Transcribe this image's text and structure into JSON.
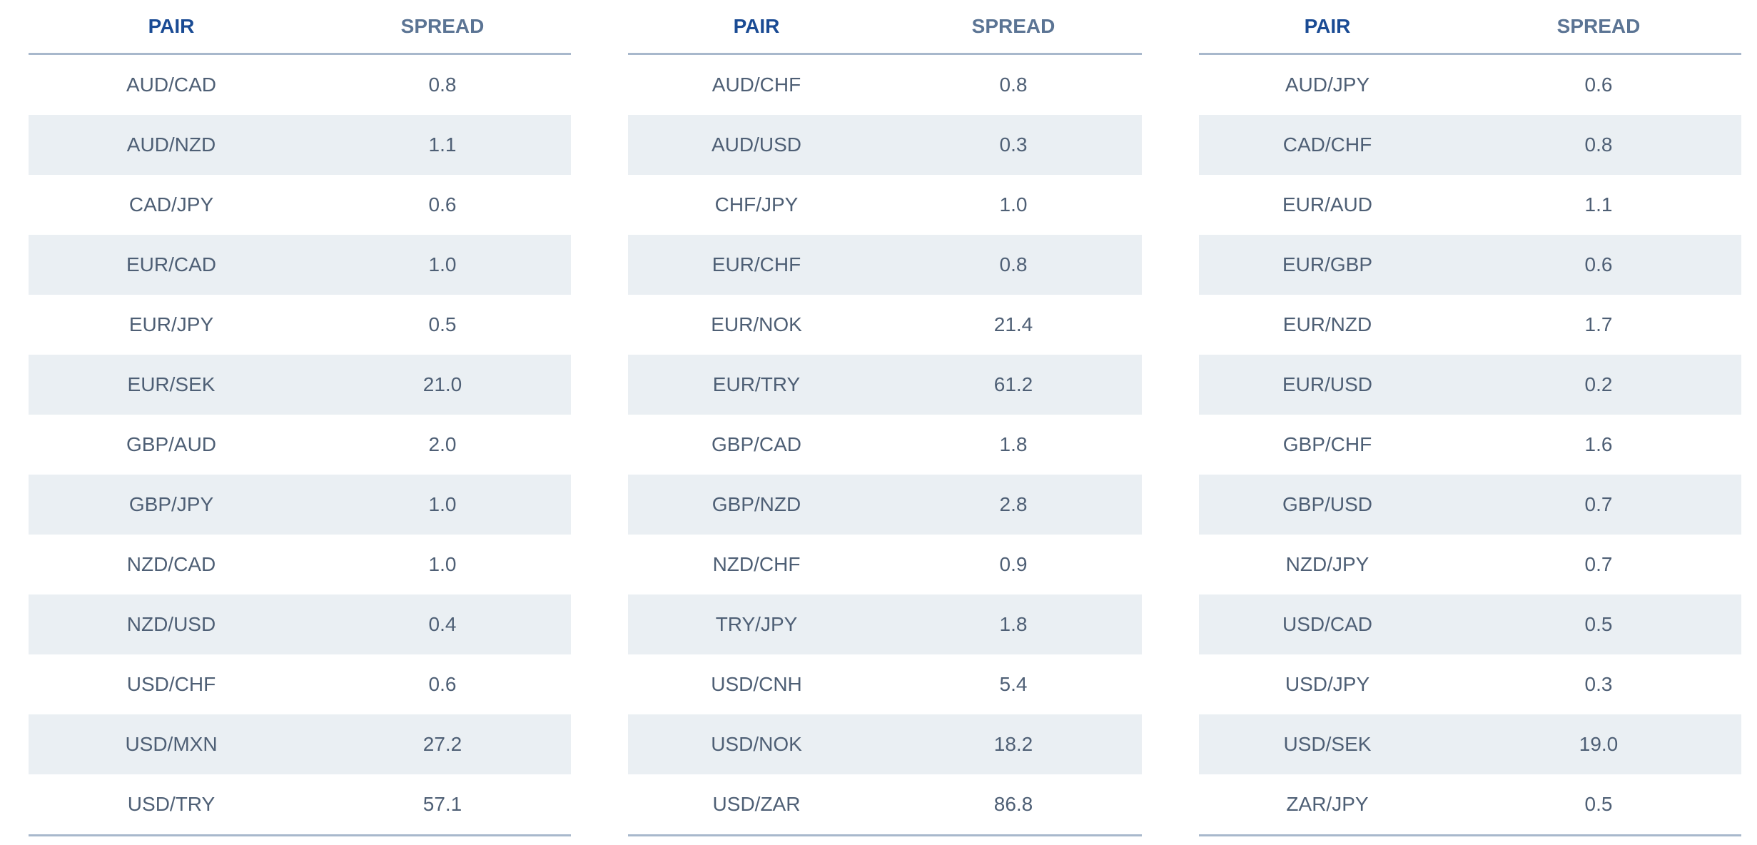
{
  "headers": {
    "pair": "PAIR",
    "spread": "SPREAD"
  },
  "tables": [
    {
      "rows": [
        {
          "pair": "AUD/CAD",
          "spread": "0.8"
        },
        {
          "pair": "AUD/NZD",
          "spread": "1.1"
        },
        {
          "pair": "CAD/JPY",
          "spread": "0.6"
        },
        {
          "pair": "EUR/CAD",
          "spread": "1.0"
        },
        {
          "pair": "EUR/JPY",
          "spread": "0.5"
        },
        {
          "pair": "EUR/SEK",
          "spread": "21.0"
        },
        {
          "pair": "GBP/AUD",
          "spread": "2.0"
        },
        {
          "pair": "GBP/JPY",
          "spread": "1.0"
        },
        {
          "pair": "NZD/CAD",
          "spread": "1.0"
        },
        {
          "pair": "NZD/USD",
          "spread": "0.4"
        },
        {
          "pair": "USD/CHF",
          "spread": "0.6"
        },
        {
          "pair": "USD/MXN",
          "spread": "27.2"
        },
        {
          "pair": "USD/TRY",
          "spread": "57.1"
        }
      ]
    },
    {
      "rows": [
        {
          "pair": "AUD/CHF",
          "spread": "0.8"
        },
        {
          "pair": "AUD/USD",
          "spread": "0.3"
        },
        {
          "pair": "CHF/JPY",
          "spread": "1.0"
        },
        {
          "pair": "EUR/CHF",
          "spread": "0.8"
        },
        {
          "pair": "EUR/NOK",
          "spread": "21.4"
        },
        {
          "pair": "EUR/TRY",
          "spread": "61.2"
        },
        {
          "pair": "GBP/CAD",
          "spread": "1.8"
        },
        {
          "pair": "GBP/NZD",
          "spread": "2.8"
        },
        {
          "pair": "NZD/CHF",
          "spread": "0.9"
        },
        {
          "pair": "TRY/JPY",
          "spread": "1.8"
        },
        {
          "pair": "USD/CNH",
          "spread": "5.4"
        },
        {
          "pair": "USD/NOK",
          "spread": "18.2"
        },
        {
          "pair": "USD/ZAR",
          "spread": "86.8"
        }
      ]
    },
    {
      "rows": [
        {
          "pair": "AUD/JPY",
          "spread": "0.6"
        },
        {
          "pair": "CAD/CHF",
          "spread": "0.8"
        },
        {
          "pair": "EUR/AUD",
          "spread": "1.1"
        },
        {
          "pair": "EUR/GBP",
          "spread": "0.6"
        },
        {
          "pair": "EUR/NZD",
          "spread": "1.7"
        },
        {
          "pair": "EUR/USD",
          "spread": "0.2"
        },
        {
          "pair": "GBP/CHF",
          "spread": "1.6"
        },
        {
          "pair": "GBP/USD",
          "spread": "0.7"
        },
        {
          "pair": "NZD/JPY",
          "spread": "0.7"
        },
        {
          "pair": "USD/CAD",
          "spread": "0.5"
        },
        {
          "pair": "USD/JPY",
          "spread": "0.3"
        },
        {
          "pair": "USD/SEK",
          "spread": "19.0"
        },
        {
          "pair": "ZAR/JPY",
          "spread": "0.5"
        }
      ]
    }
  ]
}
